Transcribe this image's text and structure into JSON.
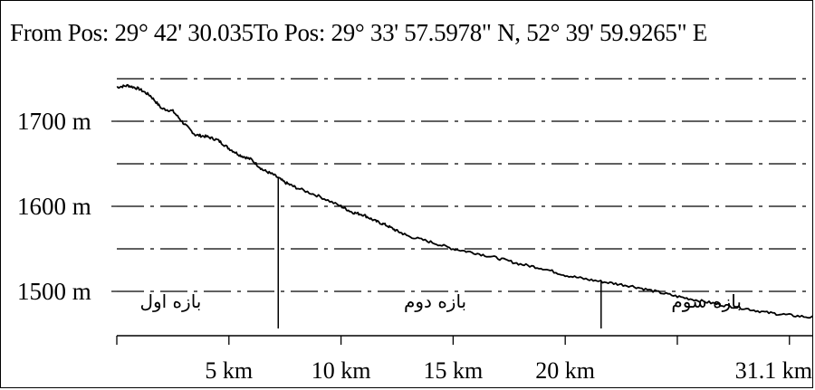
{
  "header": {
    "from_label": "From Pos:",
    "from_value": "29° 42' 30.035",
    "to_label": "To Pos:",
    "to_value": "29° 33' 57.5978\" N, 52° 39' 59.9265\" E"
  },
  "chart_data": {
    "type": "line",
    "title": "",
    "xlabel": "",
    "ylabel": "",
    "x_unit": "km",
    "y_unit": "m",
    "xlim": [
      0,
      31.1
    ],
    "ylim": [
      1460,
      1760
    ],
    "grid": true,
    "grid_style": "dash-dot",
    "grid_levels": [
      1750,
      1700,
      1650,
      1600,
      1550,
      1500
    ],
    "y_ticks": [
      {
        "value": 1700,
        "label": "1700 m"
      },
      {
        "value": 1600,
        "label": "1600 m"
      },
      {
        "value": 1500,
        "label": "1500 m"
      }
    ],
    "x_ticks": [
      {
        "value": 5,
        "label": "5 km"
      },
      {
        "value": 10,
        "label": "10 km"
      },
      {
        "value": 15,
        "label": "15 km"
      },
      {
        "value": 20,
        "label": "20 km"
      },
      {
        "value": 31.1,
        "label": "31.1 km"
      }
    ],
    "x_minor_ticks": [
      0,
      5,
      10,
      15,
      20,
      25,
      30
    ],
    "series": [
      {
        "x": [
          0,
          0.5,
          1.0,
          1.5,
          2.0,
          2.5,
          3.0,
          3.5,
          4.0,
          4.5,
          5.0,
          5.5,
          6.0,
          6.5,
          7.0,
          7.5,
          8.0,
          9.0,
          10.0,
          10.5,
          11.0,
          11.5,
          12.0,
          12.5,
          13.0,
          14.0,
          15.0,
          16.0,
          17.0,
          18.0,
          19.0,
          20.0,
          21.0,
          22.0,
          23.0,
          24.0,
          25.0,
          26.0,
          27.0,
          28.0,
          29.0,
          30.0,
          31.1
        ],
        "y": [
          1740,
          1742,
          1738,
          1730,
          1715,
          1712,
          1697,
          1684,
          1682,
          1678,
          1668,
          1660,
          1655,
          1643,
          1637,
          1628,
          1622,
          1612,
          1600,
          1593,
          1590,
          1583,
          1578,
          1571,
          1565,
          1558,
          1550,
          1545,
          1539,
          1532,
          1527,
          1519,
          1514,
          1510,
          1506,
          1500,
          1494,
          1489,
          1484,
          1480,
          1475,
          1472,
          1469
        ]
      }
    ],
    "segment_dividers": [
      7.2,
      21.6
    ],
    "segments": [
      {
        "label": "بازه اول",
        "x": 2.4
      },
      {
        "label": "بازه دوم",
        "x": 14.2
      },
      {
        "label": "بازه سوم",
        "x": 26.3
      }
    ]
  }
}
